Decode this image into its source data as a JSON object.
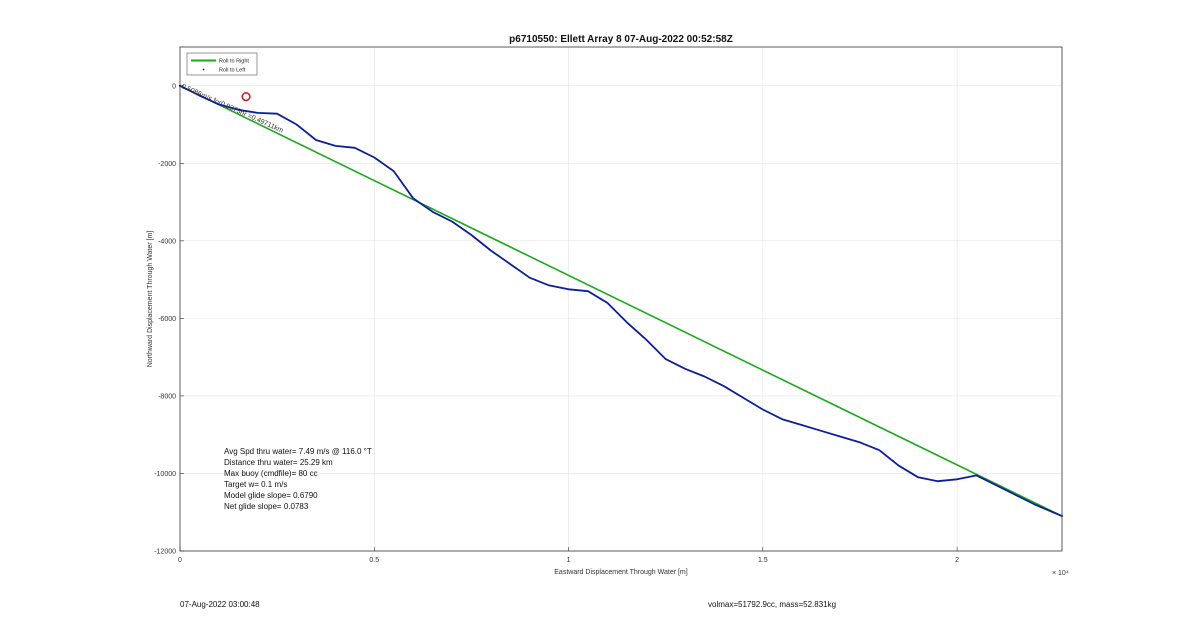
{
  "chart_data": {
    "type": "line",
    "title": "p6710550: Ellett Array 8 07-Aug-2022 00:52:58Z",
    "xlabel": "Eastward Displacement Through Water [m]",
    "ylabel": "Northward Displacement Through Water [m]",
    "x_exponent_label": "× 10⁴",
    "xlim": [
      0,
      22700
    ],
    "ylim": [
      -12000,
      1000
    ],
    "x_ticks": [
      {
        "value": 0,
        "label": "0"
      },
      {
        "value": 5000,
        "label": "0.5"
      },
      {
        "value": 10000,
        "label": "1"
      },
      {
        "value": 15000,
        "label": "1.5"
      },
      {
        "value": 20000,
        "label": "2"
      }
    ],
    "y_ticks": [
      {
        "value": 0,
        "label": "0"
      },
      {
        "value": -2000,
        "label": "-2000"
      },
      {
        "value": -4000,
        "label": "-4000"
      },
      {
        "value": -6000,
        "label": "-6000"
      },
      {
        "value": -8000,
        "label": "-8000"
      },
      {
        "value": -10000,
        "label": "-10000"
      },
      {
        "value": -12000,
        "label": "-12000"
      }
    ],
    "grid": true,
    "legend_position": "top-left",
    "series": [
      {
        "name": "Roll to Right",
        "color": "#1aaa1a",
        "x": [
          0,
          22700
        ],
        "y": [
          0,
          -11100
        ]
      },
      {
        "name": "",
        "color": "#0a1fa0",
        "x": [
          0,
          500,
          1000,
          1500,
          2000,
          2500,
          3000,
          3500,
          4000,
          4500,
          5000,
          5500,
          6000,
          6500,
          7000,
          7500,
          8000,
          8500,
          9000,
          9500,
          10000,
          10500,
          11000,
          11500,
          12000,
          12500,
          13000,
          13500,
          14000,
          14500,
          15000,
          15500,
          16000,
          16500,
          17000,
          17500,
          18000,
          18500,
          19000,
          19500,
          20000,
          20500,
          21000,
          21500,
          22000,
          22700
        ],
        "y": [
          0,
          -250,
          -480,
          -620,
          -700,
          -720,
          -1000,
          -1400,
          -1550,
          -1600,
          -1850,
          -2200,
          -2900,
          -3250,
          -3500,
          -3850,
          -4250,
          -4600,
          -4950,
          -5150,
          -5250,
          -5300,
          -5600,
          -6100,
          -6550,
          -7050,
          -7300,
          -7500,
          -7750,
          -8050,
          -8350,
          -8600,
          -8750,
          -8900,
          -9050,
          -9200,
          -9400,
          -9800,
          -10100,
          -10200,
          -10150,
          -10050,
          -10300,
          -10550,
          -10800,
          -11100
        ]
      }
    ],
    "legend": [
      {
        "label": "Roll to Right",
        "style": "line",
        "color": "#1aaa1a"
      },
      {
        "label": "Roll to Left",
        "style": "dot",
        "color": "#222222"
      }
    ],
    "annotations": {
      "path_label": "0.5086m/s for0.9375hr =0.49711km",
      "circle_marker": {
        "x": 1700,
        "y": -280,
        "color": "#cc2222"
      }
    },
    "stats": [
      "Avg Spd thru water=  7.49 m/s @ 116.0 °T",
      "Distance thru water= 25.29 km",
      "Max buoy (cmdfile)= 80 cc",
      "Target w= 0.1 m/s",
      "Model glide slope= 0.6790",
      "Net glide slope= 0.0783"
    ]
  },
  "footer": {
    "left": "07-Aug-2022 03:00:48",
    "right": "volmax=51792.9cc, mass=52.831kg"
  }
}
